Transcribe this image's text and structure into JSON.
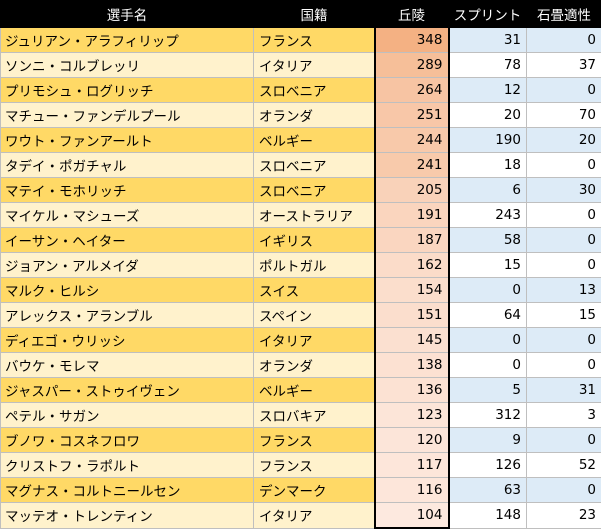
{
  "headers": [
    "選手名",
    "国籍",
    "丘陵",
    "スプリント",
    "石畳適性"
  ],
  "rows": [
    {
      "name": "ジュリアン・アラフィリップ",
      "country": "フランス",
      "hills": 348,
      "sprint": 31,
      "cobbles": 0
    },
    {
      "name": "ソンニ・コルブレッリ",
      "country": "イタリア",
      "hills": 289,
      "sprint": 78,
      "cobbles": 37
    },
    {
      "name": "プリモシュ・ログリッチ",
      "country": "スロベニア",
      "hills": 264,
      "sprint": 12,
      "cobbles": 0
    },
    {
      "name": "マチュー・ファンデルプール",
      "country": "オランダ",
      "hills": 251,
      "sprint": 20,
      "cobbles": 70
    },
    {
      "name": "ワウト・ファンアールト",
      "country": "ベルギー",
      "hills": 244,
      "sprint": 190,
      "cobbles": 20
    },
    {
      "name": "タデイ・ポガチャル",
      "country": "スロベニア",
      "hills": 241,
      "sprint": 18,
      "cobbles": 0
    },
    {
      "name": "マテイ・モホリッチ",
      "country": "スロベニア",
      "hills": 205,
      "sprint": 6,
      "cobbles": 30
    },
    {
      "name": "マイケル・マシューズ",
      "country": "オーストラリア",
      "hills": 191,
      "sprint": 243,
      "cobbles": 0
    },
    {
      "name": "イーサン・ヘイター",
      "country": "イギリス",
      "hills": 187,
      "sprint": 58,
      "cobbles": 0
    },
    {
      "name": "ジョアン・アルメイダ",
      "country": "ポルトガル",
      "hills": 162,
      "sprint": 15,
      "cobbles": 0
    },
    {
      "name": "マルク・ヒルシ",
      "country": "スイス",
      "hills": 154,
      "sprint": 0,
      "cobbles": 13
    },
    {
      "name": "アレックス・アランブル",
      "country": "スペイン",
      "hills": 151,
      "sprint": 64,
      "cobbles": 15
    },
    {
      "name": "ディエゴ・ウリッシ",
      "country": "イタリア",
      "hills": 145,
      "sprint": 0,
      "cobbles": 0
    },
    {
      "name": "バウケ・モレマ",
      "country": "オランダ",
      "hills": 138,
      "sprint": 0,
      "cobbles": 0
    },
    {
      "name": "ジャスパー・ストゥイヴェン",
      "country": "ベルギー",
      "hills": 136,
      "sprint": 5,
      "cobbles": 31
    },
    {
      "name": "ペテル・サガン",
      "country": "スロバキア",
      "hills": 123,
      "sprint": 312,
      "cobbles": 3
    },
    {
      "name": "ブノワ・コスネフロワ",
      "country": "フランス",
      "hills": 120,
      "sprint": 9,
      "cobbles": 0
    },
    {
      "name": "クリストフ・ラポルト",
      "country": "フランス",
      "hills": 117,
      "sprint": 126,
      "cobbles": 52
    },
    {
      "name": "マグナス・コルトニールセン",
      "country": "デンマーク",
      "hills": 116,
      "sprint": 63,
      "cobbles": 0
    },
    {
      "name": "マッテオ・トレンティン",
      "country": "イタリア",
      "hills": 104,
      "sprint": 148,
      "cobbles": 23
    }
  ],
  "colors": {
    "name_odd": "#ffd966",
    "name_even": "#fff2cc",
    "heat_high": "#f4b183",
    "heat_low": "#fde9df",
    "blue_cell": "#ddebf7",
    "white_cell": "#ffffff"
  }
}
